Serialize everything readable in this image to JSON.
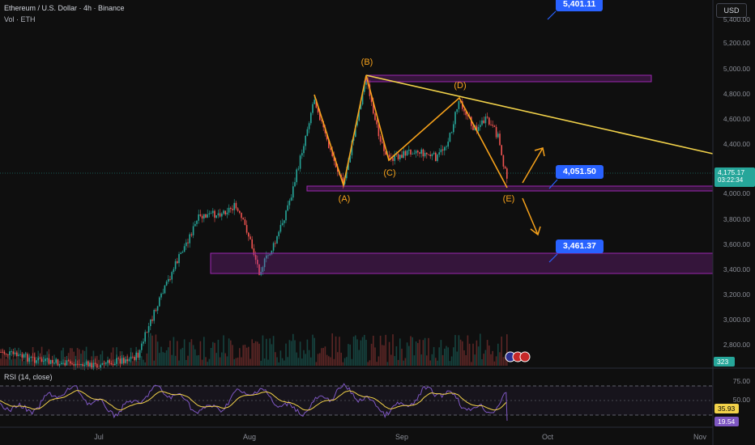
{
  "header": {
    "symbol_title": "Ethereum / U.S. Dollar · 4h · Binance",
    "volume_label": "Vol · ETH",
    "currency_button": "USD"
  },
  "price_scale": {
    "ticks": [
      "5,400.00",
      "5,200.00",
      "5,000.00",
      "4,800.00",
      "4,600.00",
      "4,400.00",
      "4,000.00",
      "3,800.00",
      "3,600.00",
      "3,400.00",
      "3,200.00",
      "3,000.00",
      "2,800.00"
    ],
    "current_price": "4,175.17",
    "countdown": "03:22:34",
    "volume_value": "323"
  },
  "rsi": {
    "label": "RSI (14, close)",
    "ticks": [
      "75.00",
      "50.00"
    ],
    "value_a": "35.93",
    "value_b": "19.54"
  },
  "time_axis": [
    "Jul",
    "Aug",
    "Sep",
    "Oct",
    "Nov"
  ],
  "annotations": {
    "target_top": "5,401.11",
    "target_mid": "4,051.50",
    "target_low": "3,461.37",
    "wave_labels": [
      "(A)",
      "(B)",
      "(C)",
      "(D)",
      "(E)"
    ]
  },
  "colors": {
    "background": "#0f0f0f",
    "up_candle": "#26a69a",
    "down_candle": "#ef5350",
    "wave": "#f7a21b",
    "trendline": "#f2d24a",
    "zone": "#9c27b0",
    "callout": "#2962ff",
    "rsi_line": "#7e57c2",
    "rsi_ma": "#f2d24a"
  }
}
